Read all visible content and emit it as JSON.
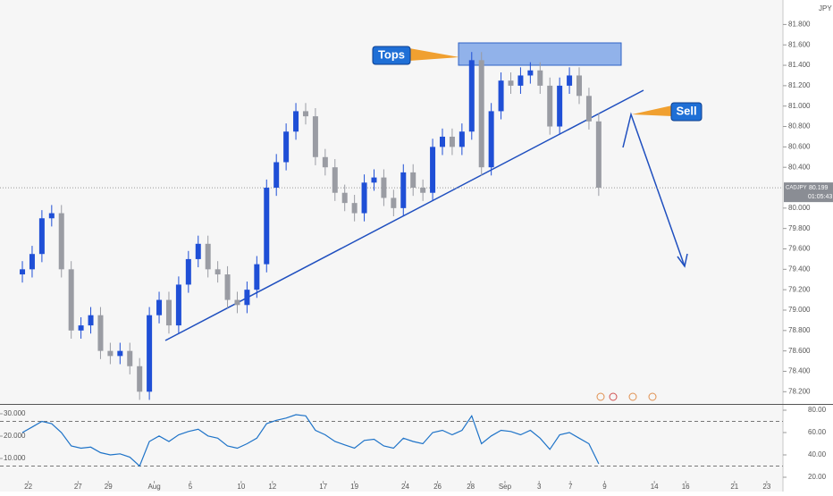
{
  "chart_data": [
    {
      "type": "candlestick",
      "symbol": "CADJPY",
      "last_price": 80.199,
      "countdown": "01:05:43",
      "currency": "JPY",
      "up_color": "#1f4fd6",
      "down_color": "#9a9ca3",
      "open": [
        79.35,
        79.4,
        79.55,
        79.9,
        79.95,
        79.4,
        78.8,
        78.85,
        78.95,
        78.6,
        78.55,
        78.6,
        78.45,
        78.2,
        78.95,
        79.1,
        78.85,
        79.25,
        79.5,
        79.65,
        79.4,
        79.35,
        79.1,
        79.05,
        79.2,
        79.45,
        80.2,
        80.45,
        80.75,
        80.95,
        80.9,
        80.5,
        80.4,
        80.15,
        80.05,
        79.95,
        80.25,
        80.3,
        80.1,
        80.0,
        80.35,
        80.2,
        80.15,
        80.6,
        80.7,
        80.6,
        80.75,
        81.45,
        80.4,
        80.95,
        81.25,
        81.2,
        81.3,
        81.35,
        81.2,
        80.8,
        81.2,
        81.3,
        81.1,
        80.85
      ],
      "high": [
        79.48,
        79.63,
        79.98,
        80.03,
        80.03,
        79.48,
        78.93,
        79.03,
        79.03,
        78.68,
        78.68,
        78.68,
        78.53,
        79.03,
        79.18,
        79.18,
        79.33,
        79.58,
        79.73,
        79.73,
        79.48,
        79.43,
        79.18,
        79.28,
        79.53,
        80.28,
        80.53,
        80.83,
        81.03,
        81.03,
        80.98,
        80.58,
        80.48,
        80.23,
        80.13,
        80.33,
        80.38,
        80.38,
        80.18,
        80.43,
        80.43,
        80.28,
        80.68,
        80.78,
        80.78,
        80.83,
        81.53,
        81.53,
        81.03,
        81.33,
        81.33,
        81.38,
        81.43,
        81.43,
        81.28,
        81.28,
        81.38,
        81.38,
        81.18,
        80.93
      ],
      "low": [
        79.27,
        79.32,
        79.47,
        79.82,
        79.32,
        78.72,
        78.72,
        78.77,
        78.52,
        78.47,
        78.47,
        78.37,
        78.12,
        78.12,
        78.87,
        78.77,
        78.77,
        79.17,
        79.42,
        79.32,
        79.27,
        79.02,
        78.97,
        78.97,
        79.12,
        79.37,
        80.12,
        80.37,
        80.67,
        80.82,
        80.42,
        80.32,
        80.07,
        79.97,
        79.87,
        79.87,
        80.17,
        80.02,
        79.92,
        79.92,
        80.12,
        80.07,
        80.07,
        80.52,
        80.52,
        80.52,
        80.67,
        80.32,
        80.32,
        80.87,
        81.12,
        81.12,
        81.22,
        81.12,
        80.72,
        80.72,
        81.12,
        81.02,
        80.77,
        80.12
      ],
      "close": [
        79.4,
        79.55,
        79.9,
        79.95,
        79.4,
        78.8,
        78.85,
        78.95,
        78.6,
        78.55,
        78.6,
        78.45,
        78.2,
        78.95,
        79.1,
        78.85,
        79.25,
        79.5,
        79.65,
        79.4,
        79.35,
        79.1,
        79.05,
        79.2,
        79.45,
        80.2,
        80.45,
        80.75,
        80.95,
        80.9,
        80.5,
        80.4,
        80.15,
        80.05,
        79.95,
        80.25,
        80.3,
        80.1,
        80.0,
        80.35,
        80.2,
        80.15,
        80.6,
        80.7,
        80.6,
        80.75,
        81.45,
        80.4,
        80.95,
        81.25,
        81.2,
        81.3,
        81.35,
        81.2,
        80.8,
        81.2,
        81.3,
        81.1,
        80.85,
        80.2
      ],
      "xlim": [
        -2.29,
        77.86
      ],
      "ylim": [
        78.08,
        82.04
      ],
      "xticks": [
        {
          "value": 0.6,
          "label": "22"
        },
        {
          "value": 5.7,
          "label": "27"
        },
        {
          "value": 8.8,
          "label": "29"
        },
        {
          "value": 13.5,
          "label": "Aug"
        },
        {
          "value": 17.2,
          "label": "5"
        },
        {
          "value": 22.4,
          "label": "10"
        },
        {
          "value": 25.6,
          "label": "12"
        },
        {
          "value": 30.8,
          "label": "17"
        },
        {
          "value": 34.0,
          "label": "19"
        },
        {
          "value": 39.2,
          "label": "24"
        },
        {
          "value": 42.5,
          "label": "26"
        },
        {
          "value": 45.9,
          "label": "28"
        },
        {
          "value": 49.4,
          "label": "Sep"
        },
        {
          "value": 52.9,
          "label": "3"
        },
        {
          "value": 56.1,
          "label": "7"
        },
        {
          "value": 59.6,
          "label": "9"
        },
        {
          "value": 64.7,
          "label": "14"
        },
        {
          "value": 67.9,
          "label": "16"
        },
        {
          "value": 72.9,
          "label": "21"
        },
        {
          "value": 76.2,
          "label": "23"
        }
      ],
      "yticks": [
        {
          "value": 78.2,
          "label": "78.200"
        },
        {
          "value": 78.4,
          "label": "78.400"
        },
        {
          "value": 78.6,
          "label": "78.600"
        },
        {
          "value": 78.8,
          "label": "78.800"
        },
        {
          "value": 79.0,
          "label": "79.000"
        },
        {
          "value": 79.2,
          "label": "79.200"
        },
        {
          "value": 79.4,
          "label": "79.400"
        },
        {
          "value": 79.6,
          "label": "79.600"
        },
        {
          "value": 79.8,
          "label": "79.800"
        },
        {
          "value": 80.0,
          "label": "80.000"
        },
        {
          "value": 80.4,
          "label": "80.400"
        },
        {
          "value": 80.6,
          "label": "80.600"
        },
        {
          "value": 80.8,
          "label": "80.800"
        },
        {
          "value": 81.0,
          "label": "81.000"
        },
        {
          "value": 81.2,
          "label": "81.200"
        },
        {
          "value": 81.4,
          "label": "81.400"
        },
        {
          "value": 81.6,
          "label": "81.600"
        },
        {
          "value": 81.8,
          "label": "81.800"
        }
      ],
      "annotations": [
        "Tops",
        "Sell"
      ]
    },
    {
      "type": "line",
      "color": "#1e73c8",
      "values": [
        60,
        65,
        70,
        68,
        60,
        48,
        46,
        47,
        42,
        40,
        41,
        38,
        30,
        52,
        57,
        52,
        58,
        61,
        63,
        57,
        55,
        48,
        46,
        50,
        55,
        68,
        71,
        73,
        76,
        75,
        62,
        58,
        52,
        49,
        46,
        53,
        54,
        48,
        46,
        55,
        52,
        50,
        60,
        62,
        58,
        62,
        75,
        50,
        57,
        62,
        61,
        58,
        62,
        55,
        45,
        58,
        60,
        55,
        50,
        32
      ],
      "ylim": [
        11.2,
        83.2
      ],
      "yticks": [
        {
          "value": 20,
          "label": "20.00"
        },
        {
          "value": 40,
          "label": "40.00"
        },
        {
          "value": 60,
          "label": "60.00"
        },
        {
          "value": 80,
          "label": "80.00"
        }
      ],
      "levels": [
        70,
        30
      ],
      "y2lim": [
        -2.8,
        33.2
      ],
      "y2ticks": [
        {
          "value": 10,
          "label": "10.000"
        },
        {
          "value": 20,
          "label": "20.000"
        },
        {
          "value": 30,
          "label": "30.000"
        }
      ]
    }
  ]
}
